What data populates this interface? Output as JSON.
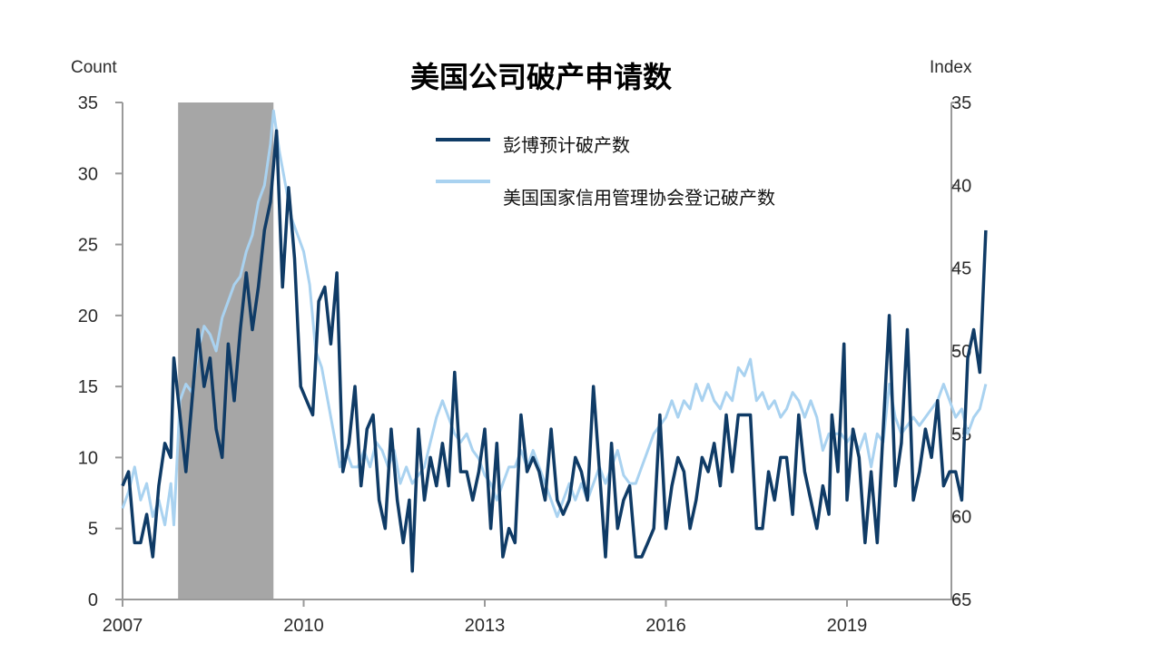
{
  "chart_data": {
    "type": "line",
    "title": "美国公司破产申请数",
    "left_axis": {
      "label": "Count",
      "range": [
        0,
        35
      ],
      "ticks": [
        0,
        5,
        10,
        15,
        20,
        25,
        30,
        35
      ]
    },
    "right_axis": {
      "label": "Index",
      "range": [
        35,
        65
      ],
      "inverted": true,
      "ticks": [
        35,
        40,
        45,
        50,
        55,
        60,
        65
      ]
    },
    "x_axis": {
      "range": [
        2007.0,
        2020.8
      ],
      "ticks": [
        2007,
        2010,
        2013,
        2016,
        2019
      ]
    },
    "recession_shading": {
      "start": 2007.92,
      "end": 2009.5,
      "color": "#a6a6a6"
    },
    "legend_position": "top-center",
    "series": [
      {
        "name": "彭博预计破产数",
        "axis": "left",
        "color": "#0f3b66",
        "points": [
          [
            2007.0,
            8
          ],
          [
            2007.1,
            9
          ],
          [
            2007.2,
            4
          ],
          [
            2007.3,
            4
          ],
          [
            2007.4,
            6
          ],
          [
            2007.5,
            3
          ],
          [
            2007.6,
            8
          ],
          [
            2007.7,
            11
          ],
          [
            2007.8,
            10
          ],
          [
            2007.85,
            17
          ],
          [
            2007.95,
            13
          ],
          [
            2008.05,
            9
          ],
          [
            2008.15,
            14
          ],
          [
            2008.25,
            19
          ],
          [
            2008.35,
            15
          ],
          [
            2008.45,
            17
          ],
          [
            2008.55,
            12
          ],
          [
            2008.65,
            10
          ],
          [
            2008.75,
            18
          ],
          [
            2008.85,
            14
          ],
          [
            2008.95,
            19
          ],
          [
            2009.05,
            23
          ],
          [
            2009.15,
            19
          ],
          [
            2009.25,
            22
          ],
          [
            2009.35,
            26
          ],
          [
            2009.45,
            28
          ],
          [
            2009.55,
            33
          ],
          [
            2009.65,
            22
          ],
          [
            2009.75,
            29
          ],
          [
            2009.85,
            24
          ],
          [
            2009.95,
            15
          ],
          [
            2010.05,
            14
          ],
          [
            2010.15,
            13
          ],
          [
            2010.25,
            21
          ],
          [
            2010.35,
            22
          ],
          [
            2010.45,
            18
          ],
          [
            2010.55,
            23
          ],
          [
            2010.65,
            9
          ],
          [
            2010.75,
            11
          ],
          [
            2010.85,
            15
          ],
          [
            2010.95,
            8
          ],
          [
            2011.05,
            12
          ],
          [
            2011.15,
            13
          ],
          [
            2011.25,
            7
          ],
          [
            2011.35,
            5
          ],
          [
            2011.45,
            12
          ],
          [
            2011.55,
            7
          ],
          [
            2011.65,
            4
          ],
          [
            2011.75,
            7
          ],
          [
            2011.8,
            2
          ],
          [
            2011.9,
            12
          ],
          [
            2012.0,
            7
          ],
          [
            2012.1,
            10
          ],
          [
            2012.2,
            8
          ],
          [
            2012.3,
            11
          ],
          [
            2012.4,
            8
          ],
          [
            2012.5,
            16
          ],
          [
            2012.6,
            9
          ],
          [
            2012.7,
            9
          ],
          [
            2012.8,
            7
          ],
          [
            2012.9,
            9
          ],
          [
            2013.0,
            12
          ],
          [
            2013.1,
            5
          ],
          [
            2013.2,
            11
          ],
          [
            2013.3,
            3
          ],
          [
            2013.4,
            5
          ],
          [
            2013.5,
            4
          ],
          [
            2013.6,
            13
          ],
          [
            2013.7,
            9
          ],
          [
            2013.8,
            10
          ],
          [
            2013.9,
            9
          ],
          [
            2014.0,
            7
          ],
          [
            2014.1,
            12
          ],
          [
            2014.2,
            7
          ],
          [
            2014.3,
            6
          ],
          [
            2014.4,
            7
          ],
          [
            2014.5,
            10
          ],
          [
            2014.6,
            9
          ],
          [
            2014.7,
            7
          ],
          [
            2014.8,
            15
          ],
          [
            2014.9,
            9
          ],
          [
            2015.0,
            3
          ],
          [
            2015.1,
            11
          ],
          [
            2015.2,
            5
          ],
          [
            2015.3,
            7
          ],
          [
            2015.4,
            8
          ],
          [
            2015.5,
            3
          ],
          [
            2015.6,
            3
          ],
          [
            2015.7,
            4
          ],
          [
            2015.8,
            5
          ],
          [
            2015.9,
            13
          ],
          [
            2016.0,
            5
          ],
          [
            2016.1,
            8
          ],
          [
            2016.2,
            10
          ],
          [
            2016.3,
            9
          ],
          [
            2016.4,
            5
          ],
          [
            2016.5,
            7
          ],
          [
            2016.6,
            10
          ],
          [
            2016.7,
            9
          ],
          [
            2016.8,
            11
          ],
          [
            2016.9,
            8
          ],
          [
            2017.0,
            13
          ],
          [
            2017.1,
            9
          ],
          [
            2017.2,
            13
          ],
          [
            2017.3,
            13
          ],
          [
            2017.4,
            13
          ],
          [
            2017.5,
            5
          ],
          [
            2017.6,
            5
          ],
          [
            2017.7,
            9
          ],
          [
            2017.8,
            7
          ],
          [
            2017.9,
            10
          ],
          [
            2018.0,
            10
          ],
          [
            2018.1,
            6
          ],
          [
            2018.2,
            13
          ],
          [
            2018.3,
            9
          ],
          [
            2018.4,
            7
          ],
          [
            2018.5,
            5
          ],
          [
            2018.6,
            8
          ],
          [
            2018.7,
            6
          ],
          [
            2018.75,
            13
          ],
          [
            2018.85,
            9
          ],
          [
            2018.95,
            18
          ],
          [
            2019.0,
            7
          ],
          [
            2019.1,
            12
          ],
          [
            2019.2,
            10
          ],
          [
            2019.3,
            4
          ],
          [
            2019.4,
            9
          ],
          [
            2019.5,
            4
          ],
          [
            2019.6,
            12
          ],
          [
            2019.7,
            20
          ],
          [
            2019.8,
            8
          ],
          [
            2019.9,
            11
          ],
          [
            2020.0,
            19
          ],
          [
            2020.1,
            7
          ],
          [
            2020.2,
            9
          ],
          [
            2020.3,
            12
          ],
          [
            2020.4,
            10
          ],
          [
            2020.5,
            14
          ],
          [
            2020.6,
            8
          ],
          [
            2020.7,
            9
          ],
          [
            2020.8,
            9
          ],
          [
            2020.9,
            7
          ],
          [
            2021.0,
            17
          ],
          [
            2021.1,
            19
          ],
          [
            2021.2,
            16
          ],
          [
            2021.3,
            26
          ]
        ]
      },
      {
        "name": "美国国家信用管理协会登记破产数",
        "axis": "right",
        "color": "#a9d2f0",
        "points": [
          [
            2007.0,
            59.5
          ],
          [
            2007.1,
            58.5
          ],
          [
            2007.2,
            57
          ],
          [
            2007.3,
            59
          ],
          [
            2007.4,
            58
          ],
          [
            2007.5,
            60
          ],
          [
            2007.6,
            59
          ],
          [
            2007.7,
            60.5
          ],
          [
            2007.8,
            58
          ],
          [
            2007.85,
            60.5
          ],
          [
            2007.95,
            53
          ],
          [
            2008.05,
            52
          ],
          [
            2008.15,
            52.5
          ],
          [
            2008.25,
            50
          ],
          [
            2008.35,
            48.5
          ],
          [
            2008.45,
            49
          ],
          [
            2008.55,
            50
          ],
          [
            2008.65,
            48
          ],
          [
            2008.75,
            47
          ],
          [
            2008.85,
            46
          ],
          [
            2008.95,
            45.5
          ],
          [
            2009.05,
            44
          ],
          [
            2009.15,
            43
          ],
          [
            2009.25,
            41
          ],
          [
            2009.35,
            40
          ],
          [
            2009.45,
            37.5
          ],
          [
            2009.5,
            35.5
          ],
          [
            2009.6,
            38
          ],
          [
            2009.7,
            40
          ],
          [
            2009.8,
            42
          ],
          [
            2009.9,
            43
          ],
          [
            2010.0,
            44
          ],
          [
            2010.1,
            46
          ],
          [
            2010.2,
            50
          ],
          [
            2010.3,
            51
          ],
          [
            2010.4,
            53
          ],
          [
            2010.5,
            55
          ],
          [
            2010.6,
            57
          ],
          [
            2010.7,
            56
          ],
          [
            2010.8,
            57
          ],
          [
            2010.9,
            57
          ],
          [
            2011.0,
            56
          ],
          [
            2011.1,
            57
          ],
          [
            2011.2,
            55.5
          ],
          [
            2011.3,
            56
          ],
          [
            2011.4,
            57
          ],
          [
            2011.5,
            56
          ],
          [
            2011.6,
            58
          ],
          [
            2011.7,
            57
          ],
          [
            2011.8,
            58
          ],
          [
            2011.9,
            57.5
          ],
          [
            2012.0,
            57
          ],
          [
            2012.1,
            55.5
          ],
          [
            2012.2,
            54
          ],
          [
            2012.3,
            53
          ],
          [
            2012.4,
            54
          ],
          [
            2012.5,
            55
          ],
          [
            2012.6,
            55.5
          ],
          [
            2012.7,
            55
          ],
          [
            2012.8,
            56
          ],
          [
            2012.9,
            56.5
          ],
          [
            2013.0,
            57.5
          ],
          [
            2013.1,
            58
          ],
          [
            2013.2,
            59
          ],
          [
            2013.3,
            58
          ],
          [
            2013.4,
            57
          ],
          [
            2013.5,
            57
          ],
          [
            2013.6,
            56
          ],
          [
            2013.7,
            57
          ],
          [
            2013.8,
            56
          ],
          [
            2013.9,
            57
          ],
          [
            2014.0,
            58
          ],
          [
            2014.1,
            59
          ],
          [
            2014.2,
            60
          ],
          [
            2014.3,
            59
          ],
          [
            2014.4,
            58
          ],
          [
            2014.5,
            59
          ],
          [
            2014.6,
            58
          ],
          [
            2014.7,
            59
          ],
          [
            2014.8,
            58
          ],
          [
            2014.9,
            57
          ],
          [
            2015.0,
            58
          ],
          [
            2015.1,
            57
          ],
          [
            2015.2,
            56
          ],
          [
            2015.3,
            57.5
          ],
          [
            2015.4,
            58
          ],
          [
            2015.5,
            58
          ],
          [
            2015.6,
            57
          ],
          [
            2015.7,
            56
          ],
          [
            2015.8,
            55
          ],
          [
            2015.9,
            54.5
          ],
          [
            2016.0,
            54
          ],
          [
            2016.1,
            53
          ],
          [
            2016.2,
            54
          ],
          [
            2016.3,
            53
          ],
          [
            2016.4,
            53.5
          ],
          [
            2016.5,
            52
          ],
          [
            2016.6,
            53
          ],
          [
            2016.7,
            52
          ],
          [
            2016.8,
            53
          ],
          [
            2016.9,
            53.5
          ],
          [
            2017.0,
            52.5
          ],
          [
            2017.1,
            53
          ],
          [
            2017.2,
            51
          ],
          [
            2017.3,
            51.5
          ],
          [
            2017.4,
            50.5
          ],
          [
            2017.5,
            53
          ],
          [
            2017.6,
            52.5
          ],
          [
            2017.7,
            53.5
          ],
          [
            2017.8,
            53
          ],
          [
            2017.9,
            54
          ],
          [
            2018.0,
            53.5
          ],
          [
            2018.1,
            52.5
          ],
          [
            2018.2,
            53
          ],
          [
            2018.3,
            54
          ],
          [
            2018.4,
            53
          ],
          [
            2018.5,
            54
          ],
          [
            2018.6,
            56
          ],
          [
            2018.7,
            55
          ],
          [
            2018.8,
            55
          ],
          [
            2018.9,
            55
          ],
          [
            2019.0,
            55.5
          ],
          [
            2019.1,
            55
          ],
          [
            2019.2,
            56
          ],
          [
            2019.3,
            55
          ],
          [
            2019.4,
            57
          ],
          [
            2019.5,
            55
          ],
          [
            2019.6,
            55.5
          ],
          [
            2019.7,
            52
          ],
          [
            2019.8,
            54
          ],
          [
            2019.9,
            55
          ],
          [
            2020.0,
            54.5
          ],
          [
            2020.1,
            54
          ],
          [
            2020.2,
            54.5
          ],
          [
            2020.3,
            54
          ],
          [
            2020.4,
            53.5
          ],
          [
            2020.5,
            53
          ],
          [
            2020.6,
            52
          ],
          [
            2020.7,
            53
          ],
          [
            2020.8,
            54
          ],
          [
            2020.9,
            53.5
          ],
          [
            2021.0,
            55
          ],
          [
            2021.1,
            54
          ],
          [
            2021.2,
            53.5
          ],
          [
            2021.3,
            52
          ]
        ]
      }
    ]
  }
}
